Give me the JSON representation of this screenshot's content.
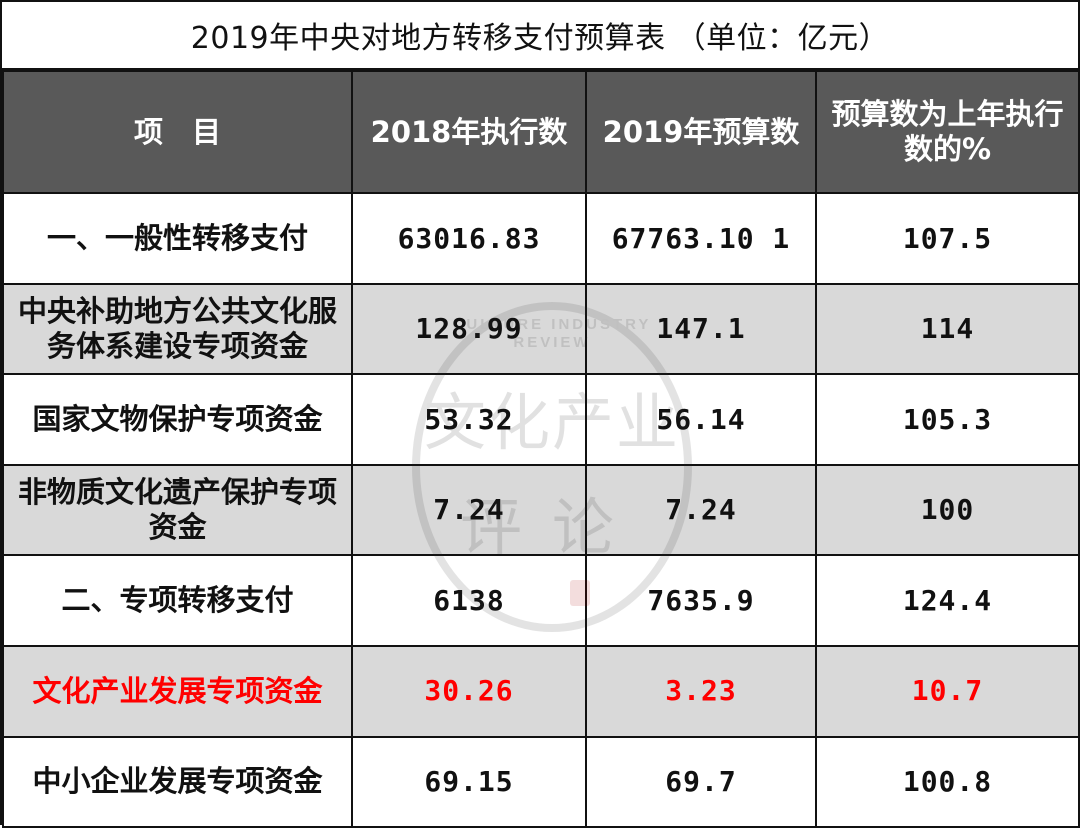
{
  "title": "2019年中央对地方转移支付预算表 （单位：亿元）",
  "headers": [
    "项　目",
    "2018年执行数",
    "2019年预算数",
    "预算数为上年执行数的%"
  ],
  "rows": [
    {
      "item": "一、一般性转移支付",
      "y2018": "63016.83",
      "y2019": "67763.10 1",
      "pct": "107.5"
    },
    {
      "item": "中央补助地方公共文化服务体系建设专项资金",
      "y2018": "128.99",
      "y2019": "147.1",
      "pct": "114"
    },
    {
      "item": "国家文物保护专项资金",
      "y2018": "53.32",
      "y2019": "56.14",
      "pct": "105.3"
    },
    {
      "item": "非物质文化遗产保护专项资金",
      "y2018": "7.24",
      "y2019": "7.24",
      "pct": "100"
    },
    {
      "item": "二、专项转移支付",
      "y2018": "6138",
      "y2019": "7635.9",
      "pct": "124.4"
    },
    {
      "item": "文化产业发展专项资金",
      "y2018": "30.26",
      "y2019": "3.23",
      "pct": "10.7"
    },
    {
      "item": "中小企业发展专项资金",
      "y2018": "69.15",
      "y2019": "69.7",
      "pct": "100.8"
    }
  ],
  "watermark": {
    "en_line1": "CULTURE INDUSTRY",
    "en_line2": "REVIEW",
    "cn_line1": "文化产业",
    "cn_line2": "评论"
  },
  "colors": {
    "header_bg": "#595959",
    "row_grey": "#d9d9d9",
    "highlight": "#ff0000"
  }
}
